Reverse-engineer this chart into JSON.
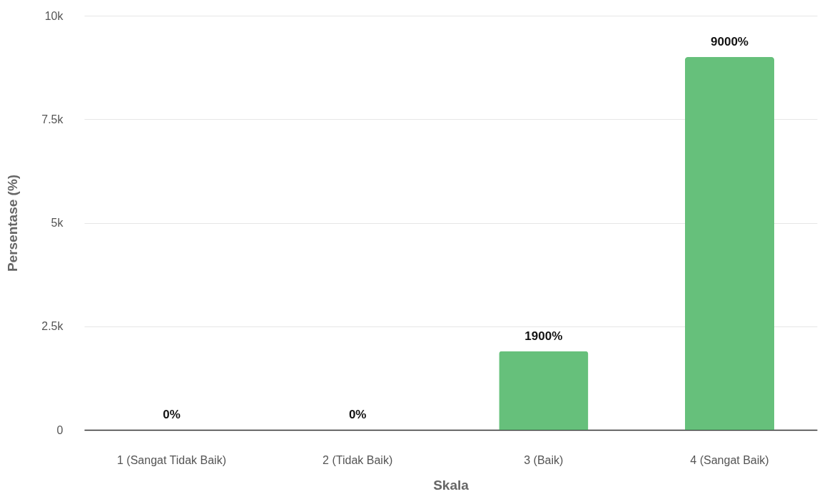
{
  "chart_data": {
    "type": "bar",
    "xlabel": "Skala",
    "ylabel": "Persentase (%)",
    "categories": [
      "1 (Sangat Tidak Baik)",
      "2 (Tidak Baik)",
      "3 (Baik)",
      "4 (Sangat Baik)"
    ],
    "values": [
      0,
      0,
      1900,
      9000
    ],
    "color": "#66c07b",
    "value_labels": [
      "0%",
      "0%",
      "1900%",
      "9000%"
    ],
    "ylim": [
      0,
      10000
    ],
    "yticks": [
      0,
      {
        "value": 2500,
        "label": "2.5k"
      },
      {
        "value": 5000,
        "label": "5k"
      },
      {
        "value": 7500,
        "label": "7.5k"
      },
      {
        "value": 10000,
        "label": "10k"
      }
    ],
    "grid": "y"
  }
}
